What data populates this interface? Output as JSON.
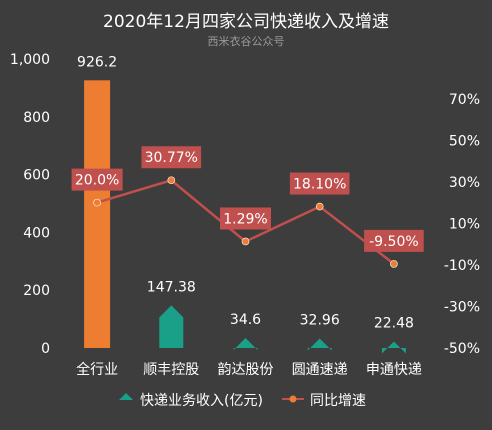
{
  "chart_data": {
    "type": "bar+line",
    "title": "2020年12月四家公司快递收入及增速",
    "watermark": "西米衣谷公众号",
    "categories": [
      "全行业",
      "顺丰控股",
      "韵达股份",
      "圆通速递",
      "申通快递"
    ],
    "series": [
      {
        "name": "快递业务收入(亿元)",
        "kind": "bar",
        "axis": "left",
        "values": [
          926.2,
          147.38,
          34.6,
          32.96,
          22.48
        ],
        "labels": [
          "926.2",
          "147.38",
          "34.6",
          "32.96",
          "22.48"
        ],
        "colors": [
          "#ed7d31",
          "#1aa088",
          "#1aa088",
          "#1aa088",
          "#1aa088"
        ]
      },
      {
        "name": "同比增速",
        "kind": "line",
        "axis": "right",
        "values": [
          20.0,
          30.77,
          1.29,
          18.1,
          -9.5
        ],
        "labels": [
          "20.0%",
          "30.77%",
          "1.29%",
          "18.10%",
          "-9.50%"
        ],
        "color": "#c0504d"
      }
    ],
    "left_axis": {
      "ylim": [
        0,
        1000
      ],
      "ticks": [
        "0",
        "200",
        "400",
        "600",
        "800",
        "1,000"
      ],
      "tick_values": [
        0,
        200,
        400,
        600,
        800,
        1000
      ]
    },
    "right_axis": {
      "ylim": [
        -50,
        80
      ],
      "ticks": [
        "-50%",
        "-30%",
        "-10%",
        "10%",
        "30%",
        "50%",
        "70%"
      ],
      "tick_values": [
        -50,
        -30,
        -10,
        10,
        30,
        50,
        70
      ]
    },
    "legend_position": "bottom",
    "grid": false
  }
}
